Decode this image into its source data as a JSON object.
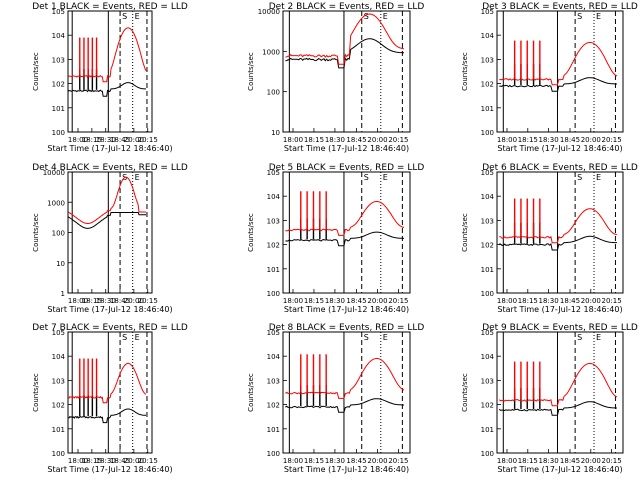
{
  "figure": {
    "title_template": "Det {n}  BLACK = Events,  RED = LLD",
    "xlabel": "Start Time (17-Jul-12 18:46:40)",
    "ylabel": "Counts/sec",
    "colors": {
      "events": "#000000",
      "lld": "#ff0000"
    },
    "xticks": [
      "18:00",
      "18:15",
      "18:30",
      "18:45",
      "20:00",
      "20:15"
    ],
    "vlines_note": "solid, dashed and dotted vertical markers; S and E flags near top"
  },
  "chart_data": [
    {
      "type": "line",
      "title": "Det 1  BLACK = Events,  RED = LLD",
      "det": 1,
      "ylog": true,
      "ylim": [
        1,
        100000
      ],
      "ytick_labels": [
        "10^0",
        "10^1",
        "10^2",
        "10^3",
        "10^4",
        "10^5"
      ],
      "series": [
        {
          "name": "BLACK = Events",
          "color": "#000000",
          "profile": "det-typical",
          "base": 50
        },
        {
          "name": "RED = LLD",
          "color": "#ff0000",
          "profile": "det-typical-lld",
          "base": 200,
          "peak": 20000
        }
      ]
    },
    {
      "type": "line",
      "title": "Det 2  BLACK = Events,  RED = LLD",
      "det": 2,
      "ylog": true,
      "ylim": [
        10,
        15000
      ],
      "ytick_labels": [
        "10",
        "100",
        "1000",
        "10000"
      ],
      "series": [
        {
          "name": "BLACK = Events",
          "color": "#000000",
          "profile": "det2",
          "base": 800
        },
        {
          "name": "RED = LLD",
          "color": "#ff0000",
          "profile": "det2-lld",
          "base": 1000,
          "peak": 12000
        }
      ]
    },
    {
      "type": "line",
      "title": "Det 3  BLACK = Events,  RED = LLD",
      "det": 3,
      "ylog": true,
      "ylim": [
        1,
        100000
      ],
      "ytick_labels": [
        "10^0",
        "10^1",
        "10^2",
        "10^3",
        "10^4",
        "10^5"
      ],
      "series": [
        {
          "name": "BLACK = Events",
          "color": "#000000",
          "profile": "det-typical",
          "base": 80
        },
        {
          "name": "RED = LLD",
          "color": "#ff0000",
          "profile": "det-typical-lld",
          "base": 150,
          "peak": 5000
        }
      ]
    },
    {
      "type": "line",
      "title": "Det 4  BLACK = Events,  RED = LLD",
      "det": 4,
      "ylog": true,
      "ylim": [
        1,
        15000
      ],
      "ytick_labels": [
        "1",
        "10",
        "100",
        "1000",
        "10000"
      ],
      "series": [
        {
          "name": "BLACK = Events",
          "color": "#000000",
          "profile": "det4",
          "base": 200
        },
        {
          "name": "RED = LLD",
          "color": "#ff0000",
          "profile": "det4-lld",
          "base": 250,
          "peak": 10000
        }
      ]
    },
    {
      "type": "line",
      "title": "Det 5  BLACK = Events,  RED = LLD",
      "det": 5,
      "ylog": true,
      "ylim": [
        1,
        100000
      ],
      "ytick_labels": [
        "10^0",
        "10^1",
        "10^2",
        "10^3",
        "10^4",
        "10^5"
      ],
      "series": [
        {
          "name": "BLACK = Events",
          "color": "#000000",
          "profile": "det-typical",
          "base": 150
        },
        {
          "name": "RED = LLD",
          "color": "#ff0000",
          "profile": "det-typical-lld",
          "base": 400,
          "peak": 6000
        }
      ]
    },
    {
      "type": "line",
      "title": "Det 6  BLACK = Events,  RED = LLD",
      "det": 6,
      "ylog": true,
      "ylim": [
        1,
        100000
      ],
      "ytick_labels": [
        "10^0",
        "10^1",
        "10^2",
        "10^3",
        "10^4",
        "10^5"
      ],
      "series": [
        {
          "name": "BLACK = Events",
          "color": "#000000",
          "profile": "det-typical",
          "base": 100
        },
        {
          "name": "RED = LLD",
          "color": "#ff0000",
          "profile": "det-typical-lld",
          "base": 200,
          "peak": 3000
        }
      ]
    },
    {
      "type": "line",
      "title": "Det 7  BLACK = Events,  RED = LLD",
      "det": 7,
      "ylog": true,
      "ylim": [
        1,
        100000
      ],
      "ytick_labels": [
        "10^0",
        "10^1",
        "10^2",
        "10^3",
        "10^4",
        "10^5"
      ],
      "series": [
        {
          "name": "BLACK = Events",
          "color": "#000000",
          "profile": "det-typical",
          "base": 30
        },
        {
          "name": "RED = LLD",
          "color": "#ff0000",
          "profile": "det-typical-lld",
          "base": 200,
          "peak": 5000
        }
      ]
    },
    {
      "type": "line",
      "title": "Det 8  BLACK = Events,  RED = LLD",
      "det": 8,
      "ylog": true,
      "ylim": [
        1,
        100000
      ],
      "ytick_labels": [
        "10^0",
        "10^1",
        "10^2",
        "10^3",
        "10^4",
        "10^5"
      ],
      "series": [
        {
          "name": "BLACK = Events",
          "color": "#000000",
          "profile": "det-typical",
          "base": 80
        },
        {
          "name": "RED = LLD",
          "color": "#ff0000",
          "profile": "det-typical-lld",
          "base": 300,
          "peak": 8000
        }
      ]
    },
    {
      "type": "line",
      "title": "Det 9  BLACK = Events,  RED = LLD",
      "det": 9,
      "ylog": true,
      "ylim": [
        1,
        100000
      ],
      "ytick_labels": [
        "10^0",
        "10^1",
        "10^2",
        "10^3",
        "10^4",
        "10^5"
      ],
      "series": [
        {
          "name": "BLACK = Events",
          "color": "#000000",
          "profile": "det-typical",
          "base": 60
        },
        {
          "name": "RED = LLD",
          "color": "#ff0000",
          "profile": "det-typical-lld",
          "base": 150,
          "peak": 5000
        }
      ]
    }
  ]
}
